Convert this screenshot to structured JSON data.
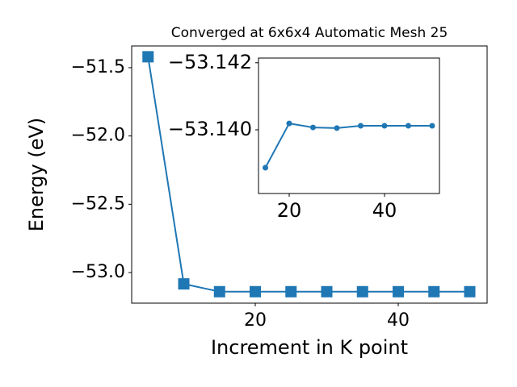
{
  "chart_data": [
    {
      "type": "line",
      "title": "Converged at 6x6x4 Automatic Mesh 25",
      "xlabel": "Increment in K point",
      "ylabel": "Energy (eV)",
      "x": [
        5,
        10,
        15,
        20,
        25,
        30,
        35,
        40,
        45,
        50
      ],
      "series": [
        {
          "color": "#1f77b4",
          "marker": "square",
          "values": [
            -51.42,
            -53.083,
            -53.14,
            -53.14,
            -53.14,
            -53.14,
            -53.14,
            -53.14,
            -53.14,
            -53.14
          ]
        }
      ],
      "xlim": [
        2.71,
        52.43
      ],
      "xticks": [
        20,
        40
      ],
      "ylim": [
        -53.224,
        -51.341
      ],
      "yticks": [
        {
          "value": -51.5,
          "label": "−51.5"
        },
        {
          "value": -52.0,
          "label": "−52.0"
        },
        {
          "value": -52.5,
          "label": "−52.5"
        },
        {
          "value": -53.0,
          "label": "−53.0"
        }
      ]
    },
    {
      "type": "line",
      "x": [
        15,
        20,
        25,
        30,
        35,
        40,
        45,
        50
      ],
      "series": [
        {
          "color": "#1f77b4",
          "marker": "circle",
          "values": [
            -53.13887,
            -53.14019,
            -53.14007,
            -53.14005,
            -53.14012,
            -53.14012,
            -53.14012,
            -53.14012
          ]
        }
      ],
      "xlim": [
        13.56,
        51.53
      ],
      "xticks": [
        20,
        40
      ],
      "ylim": [
        -53.1381,
        -53.14214
      ],
      "yinverted": true,
      "yticks": [
        {
          "value": -53.142,
          "label": "−53.142"
        },
        {
          "value": -53.14,
          "label": "−53.140"
        }
      ]
    }
  ]
}
